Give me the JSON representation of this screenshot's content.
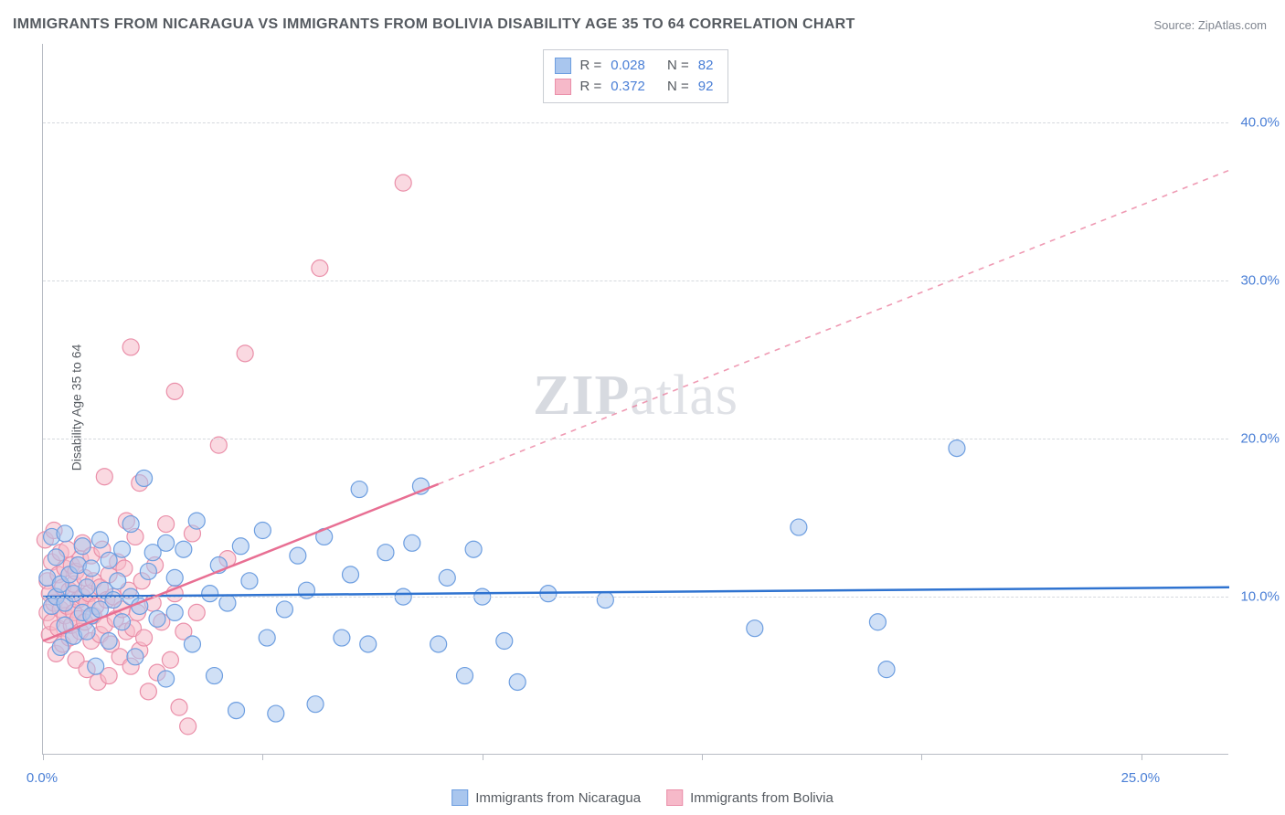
{
  "title": "IMMIGRANTS FROM NICARAGUA VS IMMIGRANTS FROM BOLIVIA DISABILITY AGE 35 TO 64 CORRELATION CHART",
  "source": "Source: ZipAtlas.com",
  "y_axis_title": "Disability Age 35 to 64",
  "watermark_bold": "ZIP",
  "watermark_rest": "atlas",
  "chart": {
    "type": "scatter",
    "xlim": [
      0,
      27
    ],
    "ylim": [
      0,
      45
    ],
    "x_ticks": [
      0,
      5,
      10,
      15,
      20,
      25
    ],
    "x_tick_labels": {
      "0": "0.0%",
      "25": "25.0%"
    },
    "y_ticks": [
      10,
      20,
      30,
      40
    ],
    "y_tick_labels": {
      "10": "10.0%",
      "20": "20.0%",
      "30": "30.0%",
      "40": "40.0%"
    },
    "grid_color": "#d6d9de",
    "axis_color": "#b8bcc4",
    "background_color": "#ffffff",
    "series": [
      {
        "name": "Immigrants from Nicaragua",
        "marker_fill": "#a9c6ee",
        "marker_stroke": "#6d9ee0",
        "line_color": "#2f73d0",
        "marker_radius": 9,
        "fill_opacity": 0.55,
        "trend": {
          "y_at_x0": 10.0,
          "y_at_xmax": 10.6,
          "solid_until_x": 27
        },
        "stats": {
          "R_label": "R =",
          "R": "0.028",
          "N_label": "N =",
          "N": "82"
        },
        "points": [
          [
            0.1,
            11.2
          ],
          [
            0.2,
            9.4
          ],
          [
            0.2,
            13.8
          ],
          [
            0.3,
            10.0
          ],
          [
            0.3,
            12.5
          ],
          [
            0.4,
            6.8
          ],
          [
            0.4,
            10.8
          ],
          [
            0.5,
            8.2
          ],
          [
            0.5,
            9.6
          ],
          [
            0.5,
            14.0
          ],
          [
            0.6,
            11.4
          ],
          [
            0.7,
            7.5
          ],
          [
            0.7,
            10.2
          ],
          [
            0.8,
            12.0
          ],
          [
            0.9,
            9.0
          ],
          [
            0.9,
            13.2
          ],
          [
            1.0,
            10.6
          ],
          [
            1.0,
            7.8
          ],
          [
            1.1,
            8.8
          ],
          [
            1.1,
            11.8
          ],
          [
            1.2,
            5.6
          ],
          [
            1.3,
            9.2
          ],
          [
            1.3,
            13.6
          ],
          [
            1.4,
            10.4
          ],
          [
            1.5,
            7.2
          ],
          [
            1.5,
            12.3
          ],
          [
            1.6,
            9.8
          ],
          [
            1.7,
            11.0
          ],
          [
            1.8,
            13.0
          ],
          [
            1.8,
            8.4
          ],
          [
            2.0,
            14.6
          ],
          [
            2.0,
            10.0
          ],
          [
            2.1,
            6.2
          ],
          [
            2.2,
            9.4
          ],
          [
            2.3,
            17.5
          ],
          [
            2.4,
            11.6
          ],
          [
            2.5,
            12.8
          ],
          [
            2.6,
            8.6
          ],
          [
            2.8,
            13.4
          ],
          [
            2.8,
            4.8
          ],
          [
            3.0,
            9.0
          ],
          [
            3.0,
            11.2
          ],
          [
            3.2,
            13.0
          ],
          [
            3.4,
            7.0
          ],
          [
            3.5,
            14.8
          ],
          [
            3.8,
            10.2
          ],
          [
            3.9,
            5.0
          ],
          [
            4.0,
            12.0
          ],
          [
            4.2,
            9.6
          ],
          [
            4.4,
            2.8
          ],
          [
            4.5,
            13.2
          ],
          [
            4.7,
            11.0
          ],
          [
            5.0,
            14.2
          ],
          [
            5.1,
            7.4
          ],
          [
            5.3,
            2.6
          ],
          [
            5.5,
            9.2
          ],
          [
            5.8,
            12.6
          ],
          [
            6.0,
            10.4
          ],
          [
            6.2,
            3.2
          ],
          [
            6.4,
            13.8
          ],
          [
            6.8,
            7.4
          ],
          [
            7.0,
            11.4
          ],
          [
            7.2,
            16.8
          ],
          [
            7.4,
            7.0
          ],
          [
            7.8,
            12.8
          ],
          [
            8.2,
            10.0
          ],
          [
            8.4,
            13.4
          ],
          [
            8.6,
            17.0
          ],
          [
            9.0,
            7.0
          ],
          [
            9.2,
            11.2
          ],
          [
            9.6,
            5.0
          ],
          [
            10.0,
            10.0
          ],
          [
            10.5,
            7.2
          ],
          [
            10.8,
            4.6
          ],
          [
            11.5,
            10.2
          ],
          [
            12.8,
            9.8
          ],
          [
            16.2,
            8.0
          ],
          [
            17.2,
            14.4
          ],
          [
            19.2,
            5.4
          ],
          [
            20.8,
            19.4
          ],
          [
            19.0,
            8.4
          ],
          [
            9.8,
            13.0
          ]
        ]
      },
      {
        "name": "Immigrants from Bolivia",
        "marker_fill": "#f6b9c9",
        "marker_stroke": "#ea8fa9",
        "line_color": "#e86f93",
        "marker_radius": 9,
        "fill_opacity": 0.55,
        "trend": {
          "y_at_x0": 7.2,
          "y_at_xmax": 37.0,
          "solid_until_x": 9.0
        },
        "stats": {
          "R_label": "R =",
          "R": "0.372",
          "N_label": "N =",
          "N": "92"
        },
        "points": [
          [
            0.05,
            13.6
          ],
          [
            0.1,
            9.0
          ],
          [
            0.1,
            11.0
          ],
          [
            0.15,
            7.6
          ],
          [
            0.15,
            10.2
          ],
          [
            0.2,
            12.2
          ],
          [
            0.2,
            8.4
          ],
          [
            0.25,
            9.6
          ],
          [
            0.25,
            14.2
          ],
          [
            0.3,
            10.0
          ],
          [
            0.3,
            6.4
          ],
          [
            0.35,
            11.4
          ],
          [
            0.35,
            8.0
          ],
          [
            0.4,
            9.2
          ],
          [
            0.4,
            12.8
          ],
          [
            0.45,
            7.0
          ],
          [
            0.45,
            10.6
          ],
          [
            0.5,
            8.8
          ],
          [
            0.5,
            11.8
          ],
          [
            0.55,
            9.4
          ],
          [
            0.55,
            13.0
          ],
          [
            0.6,
            7.4
          ],
          [
            0.6,
            10.4
          ],
          [
            0.65,
            8.2
          ],
          [
            0.65,
            12.0
          ],
          [
            0.7,
            9.0
          ],
          [
            0.7,
            10.8
          ],
          [
            0.75,
            6.0
          ],
          [
            0.75,
            11.6
          ],
          [
            0.8,
            8.6
          ],
          [
            0.8,
            9.8
          ],
          [
            0.85,
            12.4
          ],
          [
            0.85,
            7.8
          ],
          [
            0.9,
            10.0
          ],
          [
            0.9,
            13.4
          ],
          [
            0.95,
            8.4
          ],
          [
            0.95,
            11.2
          ],
          [
            1.0,
            9.6
          ],
          [
            1.0,
            5.4
          ],
          [
            1.05,
            10.2
          ],
          [
            1.1,
            7.2
          ],
          [
            1.1,
            12.6
          ],
          [
            1.15,
            8.8
          ],
          [
            1.15,
            11.0
          ],
          [
            1.2,
            9.4
          ],
          [
            1.25,
            4.6
          ],
          [
            1.3,
            10.6
          ],
          [
            1.3,
            7.6
          ],
          [
            1.35,
            13.0
          ],
          [
            1.4,
            8.2
          ],
          [
            1.45,
            9.8
          ],
          [
            1.5,
            11.4
          ],
          [
            1.5,
            5.0
          ],
          [
            1.55,
            7.0
          ],
          [
            1.6,
            10.0
          ],
          [
            1.65,
            8.6
          ],
          [
            1.7,
            12.2
          ],
          [
            1.75,
            6.2
          ],
          [
            1.8,
            9.2
          ],
          [
            1.85,
            11.8
          ],
          [
            1.9,
            7.8
          ],
          [
            1.95,
            10.4
          ],
          [
            2.0,
            5.6
          ],
          [
            2.05,
            8.0
          ],
          [
            2.1,
            13.8
          ],
          [
            2.15,
            9.0
          ],
          [
            2.2,
            6.6
          ],
          [
            2.25,
            11.0
          ],
          [
            2.3,
            7.4
          ],
          [
            2.4,
            4.0
          ],
          [
            2.5,
            9.6
          ],
          [
            2.55,
            12.0
          ],
          [
            2.6,
            5.2
          ],
          [
            2.7,
            8.4
          ],
          [
            2.8,
            14.6
          ],
          [
            2.9,
            6.0
          ],
          [
            3.0,
            10.2
          ],
          [
            3.1,
            3.0
          ],
          [
            3.2,
            7.8
          ],
          [
            3.3,
            1.8
          ],
          [
            3.5,
            9.0
          ],
          [
            3.4,
            14.0
          ],
          [
            1.4,
            17.6
          ],
          [
            2.0,
            25.8
          ],
          [
            2.2,
            17.2
          ],
          [
            3.0,
            23.0
          ],
          [
            4.0,
            19.6
          ],
          [
            4.6,
            25.4
          ],
          [
            6.3,
            30.8
          ],
          [
            8.2,
            36.2
          ],
          [
            1.9,
            14.8
          ],
          [
            4.2,
            12.4
          ]
        ]
      }
    ]
  },
  "legend": {
    "series1": "Immigrants from Nicaragua",
    "series2": "Immigrants from Bolivia"
  }
}
